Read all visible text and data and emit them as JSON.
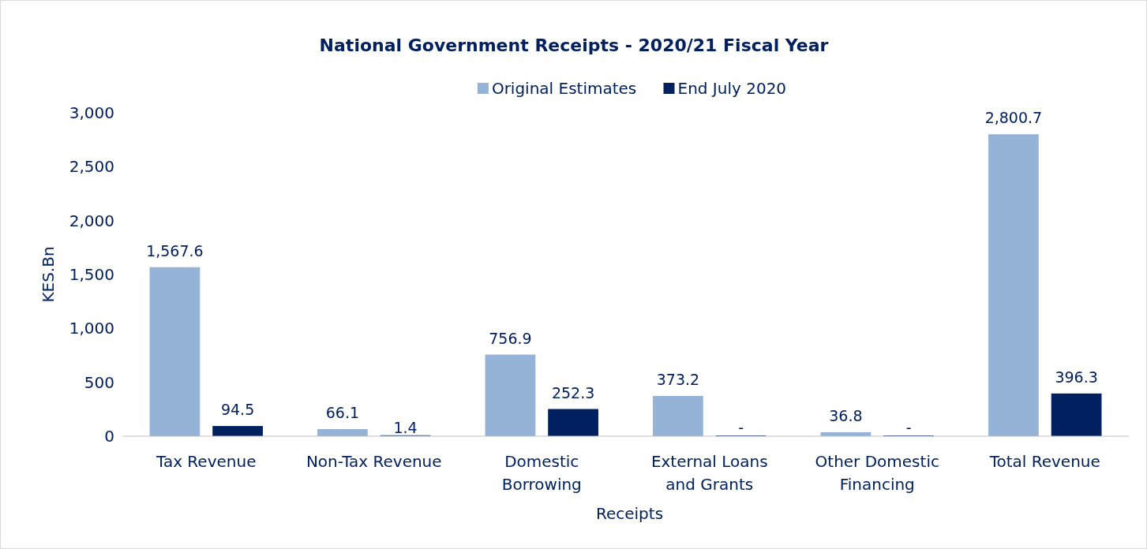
{
  "chart_data": {
    "type": "bar",
    "title": "National Government Receipts - 2020/21 Fiscal Year",
    "xlabel": "Receipts",
    "ylabel": "KES.Bn",
    "categories": [
      "Tax Revenue",
      "Non-Tax Revenue",
      "Domestic Borrowing",
      "External Loans and Grants",
      "Other Domestic Financing",
      "Total Revenue"
    ],
    "series": [
      {
        "name": "Original Estimates",
        "color": "#95b3d7",
        "values": [
          1567.6,
          66.1,
          756.9,
          373.2,
          36.8,
          2800.7
        ],
        "value_labels": [
          "1,567.6",
          "66.1",
          "756.9",
          "373.2",
          "36.8",
          "2,800.7"
        ]
      },
      {
        "name": "End July 2020",
        "color": "#002060",
        "values": [
          94.5,
          1.4,
          252.3,
          0,
          0,
          396.3
        ],
        "value_labels": [
          "94.5",
          "1.4",
          "252.3",
          "-",
          "-",
          "396.3"
        ]
      }
    ],
    "ylim": [
      0,
      3000
    ],
    "yticks": [
      {
        "value": 0,
        "label": "0"
      },
      {
        "value": 500,
        "label": "500"
      },
      {
        "value": 1000,
        "label": "1,000"
      },
      {
        "value": 1500,
        "label": "1,500"
      },
      {
        "value": 2000,
        "label": "2,000"
      },
      {
        "value": 2500,
        "label": "2,500"
      },
      {
        "value": 3000,
        "label": "3,000"
      }
    ],
    "grid": false,
    "legend": "top"
  }
}
